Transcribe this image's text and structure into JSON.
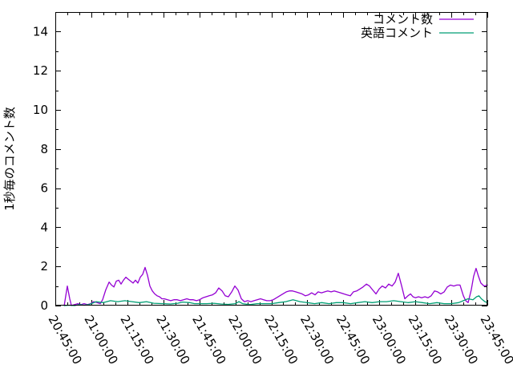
{
  "page": {
    "background": "#ffffff",
    "border_color": "#000000",
    "text_color": "#000000"
  },
  "chart_data": {
    "type": "line",
    "title": "",
    "xlabel": "",
    "ylabel": "1秒毎のコメント数",
    "grid": false,
    "legend_position": "top-right-inside",
    "x_axis": {
      "start_label": "20:45:00",
      "end_label": "23:45:00",
      "major_tick_interval_minutes": 15,
      "minor_tick_interval_minutes": 5,
      "range_minutes": [
        0,
        180
      ],
      "tick_labels": [
        "20:45:00",
        "21:00:00",
        "21:15:00",
        "21:30:00",
        "21:45:00",
        "22:00:00",
        "22:15:00",
        "22:30:00",
        "22:45:00",
        "23:00:00",
        "23:15:00",
        "23:30:00",
        "23:45:00"
      ],
      "label_rotation_deg": 60
    },
    "y_axis": {
      "min": 0,
      "max": 15,
      "major_ticks": [
        0,
        2,
        4,
        6,
        8,
        10,
        12,
        14
      ],
      "minor_ticks": [
        1,
        3,
        5,
        7,
        9,
        11,
        13
      ]
    },
    "series": [
      {
        "name": "コメント数",
        "color": "#9400d3",
        "x_unit": "minutes_after_20:45:00",
        "points": [
          [
            3.7,
            0
          ],
          [
            5,
            1.0
          ],
          [
            6,
            0.35
          ],
          [
            6.7,
            0
          ],
          [
            8,
            0.05
          ],
          [
            9.4,
            0.1
          ],
          [
            10.7,
            0.05
          ],
          [
            12,
            0.1
          ],
          [
            13.4,
            0.05
          ],
          [
            14.7,
            0.1
          ],
          [
            16,
            0.2
          ],
          [
            17.4,
            0.15
          ],
          [
            18.7,
            0.1
          ],
          [
            19.7,
            0.3
          ],
          [
            21,
            0.8
          ],
          [
            22.4,
            1.2
          ],
          [
            23.4,
            1.05
          ],
          [
            24.4,
            0.95
          ],
          [
            25.4,
            1.25
          ],
          [
            26.4,
            1.3
          ],
          [
            27.4,
            1.1
          ],
          [
            28.4,
            1.3
          ],
          [
            29.4,
            1.45
          ],
          [
            30.4,
            1.35
          ],
          [
            31.4,
            1.25
          ],
          [
            32.4,
            1.15
          ],
          [
            33.4,
            1.3
          ],
          [
            34.4,
            1.15
          ],
          [
            35.4,
            1.45
          ],
          [
            36.4,
            1.6
          ],
          [
            37.4,
            1.95
          ],
          [
            38.4,
            1.55
          ],
          [
            39.4,
            1.0
          ],
          [
            40.4,
            0.75
          ],
          [
            41.4,
            0.6
          ],
          [
            42.4,
            0.5
          ],
          [
            43.4,
            0.45
          ],
          [
            44.4,
            0.35
          ],
          [
            45.4,
            0.35
          ],
          [
            46.8,
            0.3
          ],
          [
            48.1,
            0.25
          ],
          [
            49.4,
            0.3
          ],
          [
            50.8,
            0.3
          ],
          [
            52.1,
            0.25
          ],
          [
            53.4,
            0.3
          ],
          [
            54.8,
            0.35
          ],
          [
            56.1,
            0.3
          ],
          [
            57.5,
            0.3
          ],
          [
            58.8,
            0.25
          ],
          [
            60.1,
            0.3
          ],
          [
            61.5,
            0.4
          ],
          [
            62.8,
            0.45
          ],
          [
            64.1,
            0.5
          ],
          [
            65.5,
            0.55
          ],
          [
            66.8,
            0.65
          ],
          [
            68.1,
            0.9
          ],
          [
            69.5,
            0.75
          ],
          [
            70.8,
            0.5
          ],
          [
            72.1,
            0.45
          ],
          [
            73.5,
            0.7
          ],
          [
            74.8,
            1.0
          ],
          [
            76.1,
            0.8
          ],
          [
            77.5,
            0.35
          ],
          [
            78.8,
            0.2
          ],
          [
            80.1,
            0.25
          ],
          [
            81.5,
            0.2
          ],
          [
            82.8,
            0.25
          ],
          [
            84.1,
            0.3
          ],
          [
            85.5,
            0.35
          ],
          [
            86.8,
            0.3
          ],
          [
            88.1,
            0.25
          ],
          [
            89.5,
            0.25
          ],
          [
            90.8,
            0.3
          ],
          [
            92.2,
            0.4
          ],
          [
            93.5,
            0.5
          ],
          [
            94.8,
            0.6
          ],
          [
            96.2,
            0.7
          ],
          [
            97.5,
            0.75
          ],
          [
            98.8,
            0.75
          ],
          [
            100.2,
            0.7
          ],
          [
            101.5,
            0.65
          ],
          [
            102.8,
            0.6
          ],
          [
            104.2,
            0.5
          ],
          [
            105.5,
            0.55
          ],
          [
            106.8,
            0.65
          ],
          [
            108.2,
            0.55
          ],
          [
            109.5,
            0.7
          ],
          [
            110.9,
            0.65
          ],
          [
            112.2,
            0.7
          ],
          [
            113.5,
            0.75
          ],
          [
            114.9,
            0.7
          ],
          [
            116.2,
            0.75
          ],
          [
            117.5,
            0.7
          ],
          [
            118.9,
            0.65
          ],
          [
            120.2,
            0.6
          ],
          [
            121.5,
            0.55
          ],
          [
            122.9,
            0.5
          ],
          [
            124.2,
            0.7
          ],
          [
            125.6,
            0.75
          ],
          [
            126.9,
            0.85
          ],
          [
            128.2,
            0.95
          ],
          [
            129.6,
            1.1
          ],
          [
            130.9,
            1.0
          ],
          [
            132.2,
            0.8
          ],
          [
            133.6,
            0.6
          ],
          [
            134.9,
            0.85
          ],
          [
            136.2,
            1.0
          ],
          [
            137.6,
            0.9
          ],
          [
            138.9,
            1.1
          ],
          [
            140.3,
            1.0
          ],
          [
            141.6,
            1.2
          ],
          [
            142.9,
            1.65
          ],
          [
            144.3,
            1.0
          ],
          [
            145.6,
            0.35
          ],
          [
            146.9,
            0.5
          ],
          [
            148,
            0.6
          ],
          [
            149,
            0.45
          ],
          [
            150,
            0.4
          ],
          [
            151.3,
            0.45
          ],
          [
            152.6,
            0.4
          ],
          [
            154,
            0.45
          ],
          [
            155.3,
            0.4
          ],
          [
            156.6,
            0.5
          ],
          [
            158,
            0.75
          ],
          [
            159.3,
            0.7
          ],
          [
            160.6,
            0.6
          ],
          [
            162,
            0.7
          ],
          [
            163.3,
            0.95
          ],
          [
            164.6,
            1.05
          ],
          [
            166,
            1.0
          ],
          [
            167.3,
            1.05
          ],
          [
            168.6,
            1.05
          ],
          [
            170,
            0.5
          ],
          [
            171,
            0.25
          ],
          [
            172,
            0.15
          ],
          [
            173.3,
            0.8
          ],
          [
            174.3,
            1.5
          ],
          [
            175.3,
            1.9
          ],
          [
            176.3,
            1.5
          ],
          [
            177.3,
            1.15
          ],
          [
            178.6,
            1.0
          ],
          [
            180,
            1.05
          ]
        ]
      },
      {
        "name": "英語コメント",
        "color": "#009e73",
        "x_unit": "minutes_after_20:45:00",
        "points": [
          [
            3.7,
            0
          ],
          [
            6,
            0.02
          ],
          [
            8,
            0
          ],
          [
            10,
            0.05
          ],
          [
            12,
            0.02
          ],
          [
            14,
            0.05
          ],
          [
            15,
            0.1
          ],
          [
            17,
            0.2
          ],
          [
            20,
            0.15
          ],
          [
            23,
            0.25
          ],
          [
            26,
            0.2
          ],
          [
            29,
            0.25
          ],
          [
            32,
            0.2
          ],
          [
            35,
            0.15
          ],
          [
            38,
            0.2
          ],
          [
            41,
            0.12
          ],
          [
            45,
            0.1
          ],
          [
            48,
            0.08
          ],
          [
            51,
            0.12
          ],
          [
            53,
            0.18
          ],
          [
            56,
            0.15
          ],
          [
            58,
            0.1
          ],
          [
            60,
            0.1
          ],
          [
            63,
            0.1
          ],
          [
            66,
            0.12
          ],
          [
            69,
            0.08
          ],
          [
            72,
            0.06
          ],
          [
            75,
            0.1
          ],
          [
            76.5,
            0.2
          ],
          [
            78,
            0.1
          ],
          [
            81,
            0.05
          ],
          [
            84,
            0.1
          ],
          [
            87,
            0.1
          ],
          [
            90,
            0.1
          ],
          [
            93,
            0.15
          ],
          [
            96,
            0.2
          ],
          [
            99,
            0.3
          ],
          [
            102,
            0.2
          ],
          [
            105,
            0.15
          ],
          [
            108,
            0.1
          ],
          [
            111,
            0.15
          ],
          [
            114,
            0.1
          ],
          [
            117,
            0.15
          ],
          [
            120,
            0.15
          ],
          [
            123,
            0.1
          ],
          [
            126,
            0.15
          ],
          [
            129,
            0.2
          ],
          [
            132,
            0.15
          ],
          [
            135,
            0.2
          ],
          [
            138,
            0.2
          ],
          [
            141,
            0.25
          ],
          [
            144,
            0.2
          ],
          [
            147,
            0.15
          ],
          [
            150,
            0.2
          ],
          [
            153,
            0.15
          ],
          [
            156,
            0.1
          ],
          [
            159,
            0.15
          ],
          [
            162,
            0.1
          ],
          [
            165,
            0.1
          ],
          [
            168,
            0.15
          ],
          [
            170,
            0.25
          ],
          [
            172,
            0.35
          ],
          [
            174,
            0.3
          ],
          [
            175.5,
            0.45
          ],
          [
            176.5,
            0.5
          ],
          [
            177.5,
            0.35
          ],
          [
            179,
            0.2
          ],
          [
            180,
            0.15
          ]
        ]
      }
    ]
  }
}
